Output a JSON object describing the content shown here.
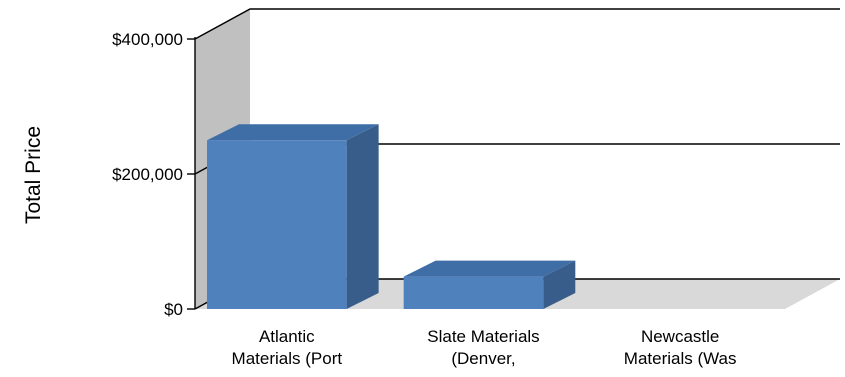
{
  "chart_data": {
    "type": "bar",
    "ylabel": "Total Price",
    "categories": [
      [
        "Atlantic",
        "Materials (Port"
      ],
      [
        "Slate Materials",
        "(Denver,"
      ],
      [
        "Newcastle",
        "Materials (Was"
      ]
    ],
    "values": [
      250000,
      48000,
      0
    ],
    "ylim": [
      0,
      400000
    ],
    "yticks": [
      {
        "value": 0,
        "label": "$0"
      },
      {
        "value": 200000,
        "label": "$200,000"
      },
      {
        "value": 400000,
        "label": "$400,000"
      }
    ],
    "grid": true,
    "three_d": true,
    "colors": {
      "bar_front": "#4f81bd",
      "bar_top": "#3f6ea6",
      "bar_side": "#385d8a",
      "back_wall": "#c0c0c0",
      "floor": "#d9d9d9",
      "gridline": "#000000"
    }
  }
}
